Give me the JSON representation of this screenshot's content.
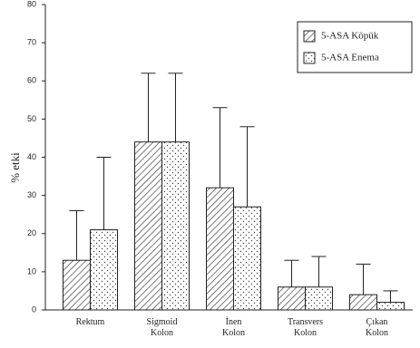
{
  "chart_data": {
    "type": "bar",
    "y_label": "% etki",
    "categories": [
      "Rektum",
      "Sigmoid Kolon",
      "İnen Kolon",
      "Transvers Kolon",
      "Çıkan Kolon"
    ],
    "series": [
      {
        "name": "5-ASA Köpük",
        "pattern": "hatch",
        "values": [
          13,
          44,
          32,
          6,
          4
        ],
        "errors": [
          13,
          18,
          21,
          7,
          8
        ]
      },
      {
        "name": "5-ASA Enema",
        "pattern": "dots",
        "values": [
          21,
          44,
          27,
          6,
          2
        ],
        "errors": [
          19,
          18,
          21,
          8,
          3
        ]
      }
    ],
    "ylim": [
      0,
      80
    ],
    "yticks": [
      0,
      10,
      20,
      30,
      40,
      50,
      60,
      70,
      80
    ],
    "legend": "upper right"
  }
}
